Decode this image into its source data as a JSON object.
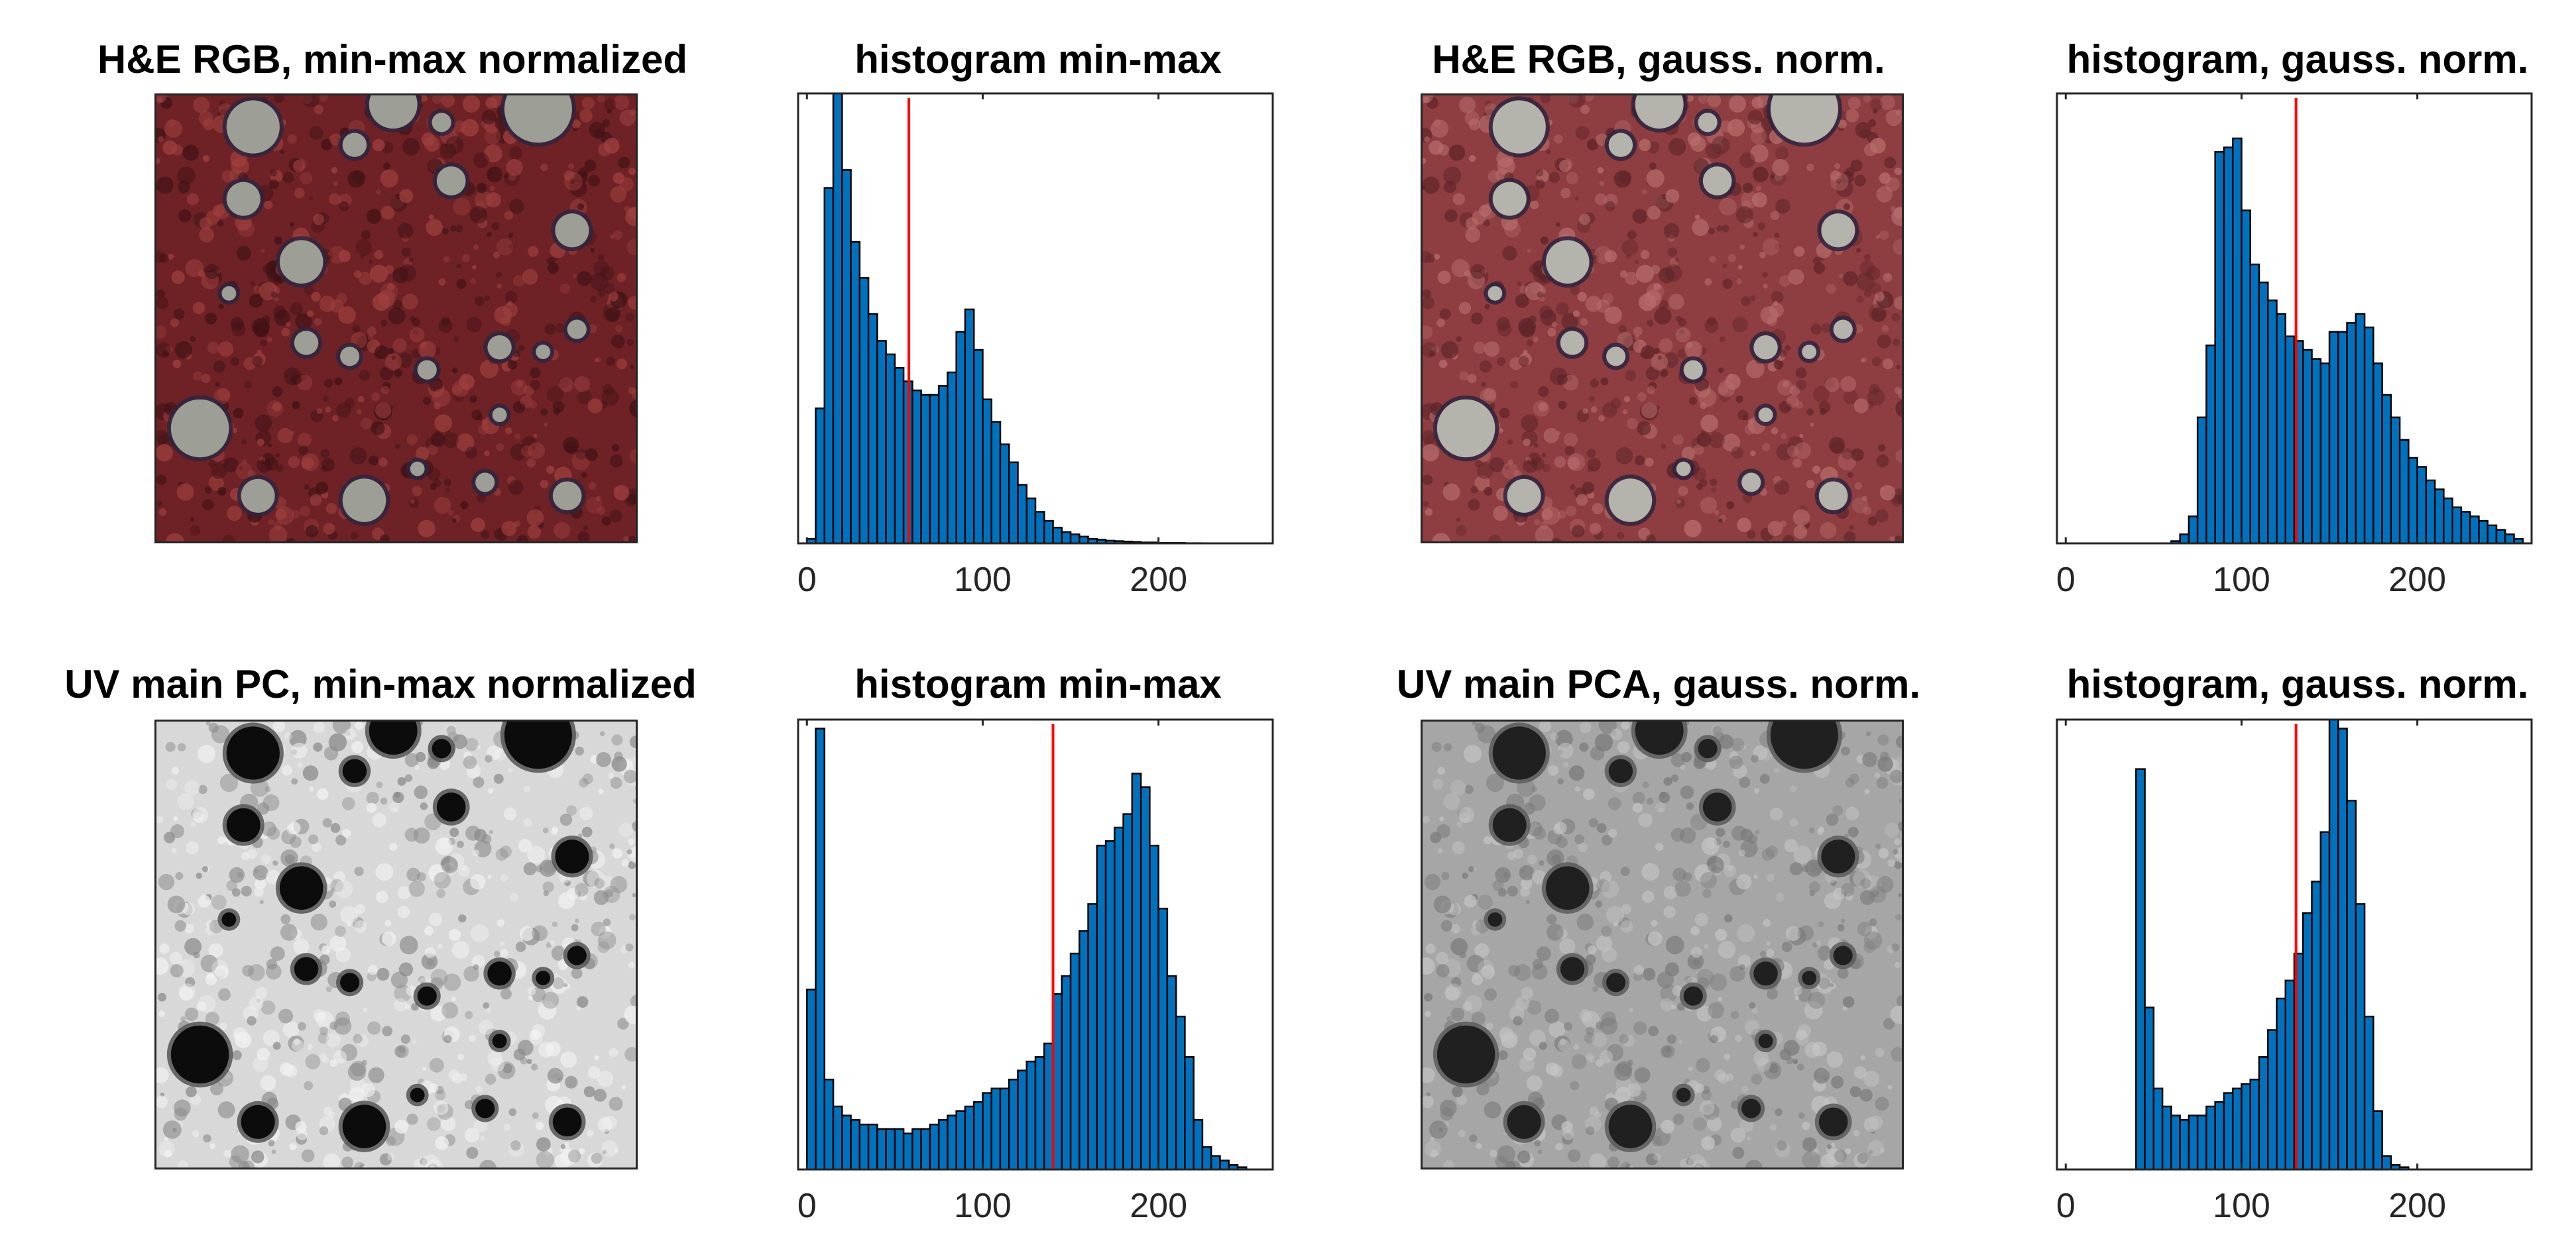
{
  "panels": [
    {
      "id": "he-minmax",
      "title": "H&E RGB, min-max normalized",
      "kind": "he",
      "variant": "minmax"
    },
    {
      "id": "hist-he-minmax",
      "title": "histogram min-max",
      "kind": "hist",
      "chart": 0
    },
    {
      "id": "he-gauss",
      "title": "H&E RGB, gauss. norm.",
      "kind": "he",
      "variant": "gauss"
    },
    {
      "id": "hist-he-gauss",
      "title": "histogram, gauss. norm.",
      "kind": "hist",
      "chart": 1
    },
    {
      "id": "uv-minmax",
      "title": "UV main PC, min-max normalized",
      "kind": "uv",
      "variant": "minmax"
    },
    {
      "id": "hist-uv-minmax",
      "title": "histogram min-max",
      "kind": "hist",
      "chart": 2
    },
    {
      "id": "uv-gauss",
      "title": "UV main PCA, gauss. norm.",
      "kind": "uv",
      "variant": "gauss"
    },
    {
      "id": "hist-uv-gauss",
      "title": "histogram, gauss. norm.",
      "kind": "hist",
      "chart": 3
    }
  ],
  "colors": {
    "bar_fill": "#0072bd",
    "bar_edge": "#000000",
    "threshold_line": "#ff0000",
    "axis": "#262626",
    "he_tissue": "#6e2226",
    "he_tissue_gauss": "#8e3d40",
    "he_vacuole": "#9d9e95",
    "uv_background": "#d8d8d8",
    "uv_background_gauss": "#a6a6a6",
    "uv_vacuole": "#0c0c0c"
  },
  "chart_data": [
    {
      "type": "bar",
      "title": "histogram min-max",
      "bin_width": 5,
      "bin_starts": [
        0,
        5,
        10,
        15,
        20,
        25,
        30,
        35,
        40,
        45,
        50,
        55,
        60,
        65,
        70,
        75,
        80,
        85,
        90,
        95,
        100,
        105,
        110,
        115,
        120,
        125,
        130,
        135,
        140,
        145,
        150,
        155,
        160,
        165,
        170,
        175,
        180,
        185,
        190,
        195,
        200,
        205,
        210,
        215,
        220
      ],
      "values": [
        1,
        30,
        79,
        100,
        83,
        67,
        59,
        51,
        45,
        42,
        39,
        36,
        34,
        33,
        33,
        35,
        38,
        47,
        52,
        43,
        32,
        27,
        22,
        18,
        13,
        10,
        7,
        5,
        3.5,
        2.5,
        2,
        1.5,
        1,
        0.8,
        0.6,
        0.5,
        0.4,
        0.3,
        0.2,
        0.2,
        0.1,
        0.1,
        0.1,
        0.05,
        0.05
      ],
      "threshold": 58,
      "xlim": [
        -5,
        265
      ],
      "ylim": [
        0,
        100
      ],
      "xticks": [
        0,
        100,
        200
      ],
      "yticks": []
    },
    {
      "type": "bar",
      "title": "histogram, gauss. norm.",
      "bin_width": 5,
      "bin_starts": [
        60,
        65,
        70,
        75,
        80,
        85,
        90,
        95,
        100,
        105,
        110,
        115,
        120,
        125,
        130,
        135,
        140,
        145,
        150,
        155,
        160,
        165,
        170,
        175,
        180,
        185,
        190,
        195,
        200,
        205,
        210,
        215,
        220,
        225,
        230,
        235,
        240,
        245,
        250,
        255
      ],
      "values": [
        0.5,
        2,
        6,
        28,
        44,
        87,
        88,
        90,
        74,
        62,
        58,
        54,
        51,
        46,
        45,
        43,
        41,
        40,
        47,
        47,
        49,
        51,
        48,
        40,
        33,
        28,
        23,
        19,
        17,
        14,
        12,
        10,
        8,
        7,
        6,
        5,
        4,
        3,
        2,
        1
      ],
      "threshold": 131,
      "xlim": [
        -5,
        265
      ],
      "ylim": [
        0,
        100
      ],
      "xticks": [
        0,
        100,
        200
      ],
      "yticks": []
    },
    {
      "type": "bar",
      "title": "histogram min-max",
      "bin_width": 5,
      "bin_starts": [
        0,
        5,
        10,
        15,
        20,
        25,
        30,
        35,
        40,
        45,
        50,
        55,
        60,
        65,
        70,
        75,
        80,
        85,
        90,
        95,
        100,
        105,
        110,
        115,
        120,
        125,
        130,
        135,
        140,
        145,
        150,
        155,
        160,
        165,
        170,
        175,
        180,
        185,
        190,
        195,
        200,
        205,
        210,
        215,
        220,
        225,
        230,
        235,
        240,
        245
      ],
      "values": [
        40,
        98,
        20,
        14,
        12,
        11,
        10,
        10,
        9,
        9,
        9,
        8,
        9,
        9,
        10,
        11,
        12,
        13,
        14,
        15,
        17,
        18,
        18,
        20,
        22,
        24,
        25,
        28,
        39,
        43,
        48,
        53,
        59,
        72,
        73,
        76,
        79,
        88,
        85,
        72,
        58,
        43,
        34,
        25,
        11,
        5,
        3,
        2,
        1,
        0.5
      ],
      "threshold": 140,
      "xlim": [
        -5,
        265
      ],
      "ylim": [
        0,
        100
      ],
      "xticks": [
        0,
        100,
        200
      ],
      "yticks": []
    },
    {
      "type": "bar",
      "title": "histogram, gauss. norm.",
      "bin_width": 5,
      "bin_starts": [
        40,
        45,
        50,
        55,
        60,
        65,
        70,
        75,
        80,
        85,
        90,
        95,
        100,
        105,
        110,
        115,
        120,
        125,
        130,
        135,
        140,
        145,
        150,
        155,
        160,
        165,
        170,
        175,
        180,
        185,
        190
      ],
      "values": [
        89,
        36,
        18,
        14,
        12,
        11,
        12,
        12,
        14,
        15,
        17,
        18,
        19,
        20,
        25,
        31,
        38,
        42,
        48,
        57,
        64,
        75,
        102,
        98,
        82,
        59,
        34,
        13,
        3,
        1,
        0.5
      ],
      "threshold": 131,
      "xlim": [
        -5,
        265
      ],
      "ylim": [
        0,
        100
      ],
      "xticks": [
        0,
        100,
        200
      ],
      "yticks": []
    }
  ]
}
